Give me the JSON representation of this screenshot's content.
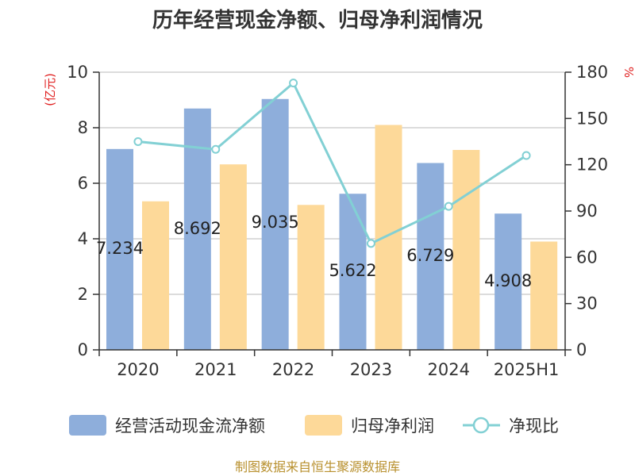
{
  "chart_data": {
    "type": "bar",
    "title": "历年经营现金净额、归母净利润情况",
    "categories": [
      "2020",
      "2021",
      "2022",
      "2023",
      "2024",
      "2025H1"
    ],
    "y_left": {
      "unit": "(亿元)",
      "ylim": [
        0,
        10
      ],
      "ticks": [
        "0",
        "2",
        "4",
        "6",
        "8",
        "10"
      ]
    },
    "y_right": {
      "unit": "%",
      "ylim": [
        0,
        180
      ],
      "ticks": [
        "0",
        "30",
        "60",
        "90",
        "120",
        "150",
        "180"
      ]
    },
    "series": [
      {
        "name": "经营活动现金流净额",
        "type": "bar",
        "axis": "left",
        "color": "#8eaedb",
        "values": [
          7.234,
          8.692,
          9.035,
          5.622,
          6.729,
          4.908
        ],
        "labels": [
          "7.234",
          "8.692",
          "9.035",
          "5.622",
          "6.729",
          "4.908"
        ]
      },
      {
        "name": "归母净利润",
        "type": "bar",
        "axis": "left",
        "color": "#fdd999",
        "values": [
          5.35,
          6.68,
          5.22,
          8.1,
          7.2,
          3.9
        ]
      },
      {
        "name": "净现比",
        "type": "line",
        "axis": "right",
        "color": "#82d0d4",
        "values": [
          135,
          130,
          173,
          69,
          93,
          126
        ]
      }
    ],
    "grid": true,
    "legend_position": "bottom"
  },
  "footer": {
    "source": "制图数据来自恒生聚源数据库"
  }
}
